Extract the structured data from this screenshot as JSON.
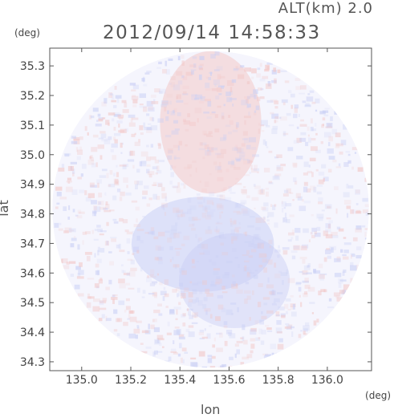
{
  "header": {
    "altitude_label": "ALT(km) 2.0",
    "timestamp": "2012/09/14 14:58:33"
  },
  "axes": {
    "x_title": "lon",
    "y_title": "lat",
    "x_unit": "(deg)",
    "y_unit": "(deg)",
    "x_range": [
      134.87,
      136.18
    ],
    "y_range": [
      34.27,
      35.36
    ],
    "x_ticks": [
      "135.0",
      "135.2",
      "135.4",
      "135.6",
      "135.8",
      "136.0"
    ],
    "y_ticks": [
      "35.3",
      "35.2",
      "35.1",
      "35.0",
      "34.9",
      "34.8",
      "34.7",
      "34.6",
      "34.5",
      "34.4",
      "34.3"
    ]
  },
  "map": {
    "type": "radar-scan",
    "center_lon": 135.525,
    "center_lat": 34.815,
    "radius_deg": 0.535,
    "colors": {
      "positive": "#f2c8c8",
      "negative": "#c9cff5",
      "background_fill": "#f5f5fd"
    }
  }
}
